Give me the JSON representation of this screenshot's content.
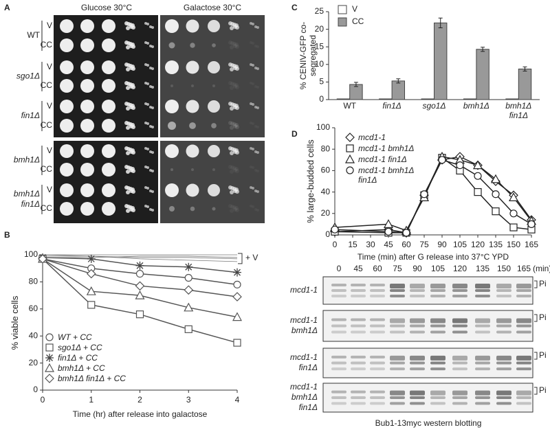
{
  "panel_labels": [
    "A",
    "B",
    "C",
    "D"
  ],
  "panel_a": {
    "conditions": [
      "Glucose 30°C",
      "Galactose 30°C"
    ],
    "strains": [
      {
        "name": [
          "WT"
        ],
        "rows": [
          "V",
          "CC"
        ]
      },
      {
        "name": [
          "sgo1Δ"
        ],
        "rows": [
          "V",
          "CC"
        ]
      },
      {
        "name": [
          "fin1Δ"
        ],
        "rows": [
          "V",
          "CC"
        ]
      },
      {
        "name": [
          "bmh1Δ"
        ],
        "rows": [
          "V",
          "CC"
        ]
      },
      {
        "name": [
          "bmh1Δ",
          "fin1Δ"
        ],
        "rows": [
          "V",
          "CC"
        ]
      }
    ]
  },
  "chart_data": [
    {
      "type": "line",
      "panel": "B",
      "xlabel": "Time (hr) after release into galactose",
      "ylabel": "% viable cells",
      "x": [
        0,
        1,
        2,
        3,
        4
      ],
      "xlim": [
        0,
        4
      ],
      "xticks": [
        0,
        1,
        2,
        3,
        4
      ],
      "ylim": [
        0,
        100
      ],
      "yticks": [
        0,
        20,
        40,
        60,
        80,
        100
      ],
      "series": [
        {
          "name": "WT + CC",
          "marker": "circle",
          "color": "#555555",
          "values": [
            97,
            90,
            86,
            83,
            78
          ]
        },
        {
          "name": "sgo1Δ + CC",
          "marker": "square",
          "color": "#555555",
          "values": [
            97,
            63,
            56,
            45,
            35
          ]
        },
        {
          "name": "fin1Δ + CC",
          "marker": "star",
          "color": "#555555",
          "values": [
            98,
            97,
            92,
            91,
            87
          ]
        },
        {
          "name": "bmh1Δ + CC",
          "marker": "triangle",
          "color": "#555555",
          "values": [
            97,
            73,
            70,
            61,
            54
          ]
        },
        {
          "name": "bmh1Δ fin1Δ + CC",
          "marker": "diamond",
          "color": "#555555",
          "values": [
            97,
            86,
            77,
            74,
            69
          ]
        }
      ],
      "v_series": [
        {
          "values": [
            100,
            100,
            100,
            100,
            100
          ]
        },
        {
          "values": [
            99,
            99,
            98,
            98,
            97
          ]
        },
        {
          "values": [
            98,
            98,
            99,
            99,
            98
          ]
        },
        {
          "values": [
            100,
            99,
            97,
            96,
            95
          ]
        }
      ],
      "annotation": "+ V"
    },
    {
      "type": "bar",
      "panel": "C",
      "ylabel": "% CENIV-GFP co-segregated",
      "categories": [
        "WT",
        "fin1Δ",
        "sgo1Δ",
        "bmh1Δ",
        "bmh1Δ fin1Δ"
      ],
      "ylim": [
        0,
        25
      ],
      "yticks": [
        0,
        5,
        10,
        15,
        20,
        25
      ],
      "series": [
        {
          "name": "V",
          "color": "#ffffff",
          "values": [
            0.2,
            0.2,
            0.2,
            0.2,
            0.2
          ]
        },
        {
          "name": "CC",
          "color": "#999999",
          "values": [
            4.3,
            5.3,
            21.8,
            14.3,
            8.7
          ],
          "errors": [
            0.6,
            0.6,
            1.4,
            0.6,
            0.6
          ]
        }
      ]
    },
    {
      "type": "line",
      "panel": "D",
      "xlabel": "Time (min) after G release into 37°C YPD",
      "ylabel": "% large-budded cells",
      "x": [
        0,
        45,
        60,
        75,
        90,
        105,
        120,
        135,
        150,
        165
      ],
      "xlim": [
        0,
        165
      ],
      "xticks": [
        0,
        15,
        30,
        45,
        60,
        75,
        90,
        105,
        120,
        135,
        150,
        165
      ],
      "ylim": [
        0,
        100
      ],
      "yticks": [
        0,
        20,
        40,
        60,
        80,
        100
      ],
      "series": [
        {
          "name": "mcd1-1",
          "marker": "diamond",
          "color": "#222222",
          "values": [
            3,
            5,
            2,
            37,
            70,
            73,
            65,
            50,
            37,
            14
          ]
        },
        {
          "name": "mcd1-1 bmh1Δ",
          "marker": "square",
          "color": "#222222",
          "values": [
            3,
            2,
            2,
            37,
            72,
            60,
            40,
            22,
            7,
            5
          ]
        },
        {
          "name": "mcd1-1 fin1Δ",
          "marker": "triangle",
          "color": "#222222",
          "values": [
            7,
            10,
            4,
            35,
            73,
            70,
            65,
            52,
            35,
            13
          ]
        },
        {
          "name": "mcd1-1 bmh1Δ fin1Δ",
          "marker": "circle",
          "color": "#222222",
          "values": [
            5,
            3,
            2,
            38,
            70,
            65,
            55,
            38,
            20,
            10
          ]
        }
      ]
    }
  ],
  "blot": {
    "times": [
      0,
      45,
      60,
      75,
      90,
      105,
      120,
      135,
      150,
      165
    ],
    "time_unit": "(min)",
    "rows": [
      {
        "name": [
          "mcd1-1"
        ],
        "band": "Pi"
      },
      {
        "name": [
          "mcd1-1",
          "bmh1Δ"
        ],
        "band": "Pi"
      },
      {
        "name": [
          "mcd1-1",
          "fin1Δ"
        ],
        "band": "Pi"
      },
      {
        "name": [
          "mcd1-1",
          "bmh1Δ",
          "fin1Δ"
        ],
        "band": "Pi"
      }
    ],
    "caption": "Bub1-13myc western blotting"
  }
}
